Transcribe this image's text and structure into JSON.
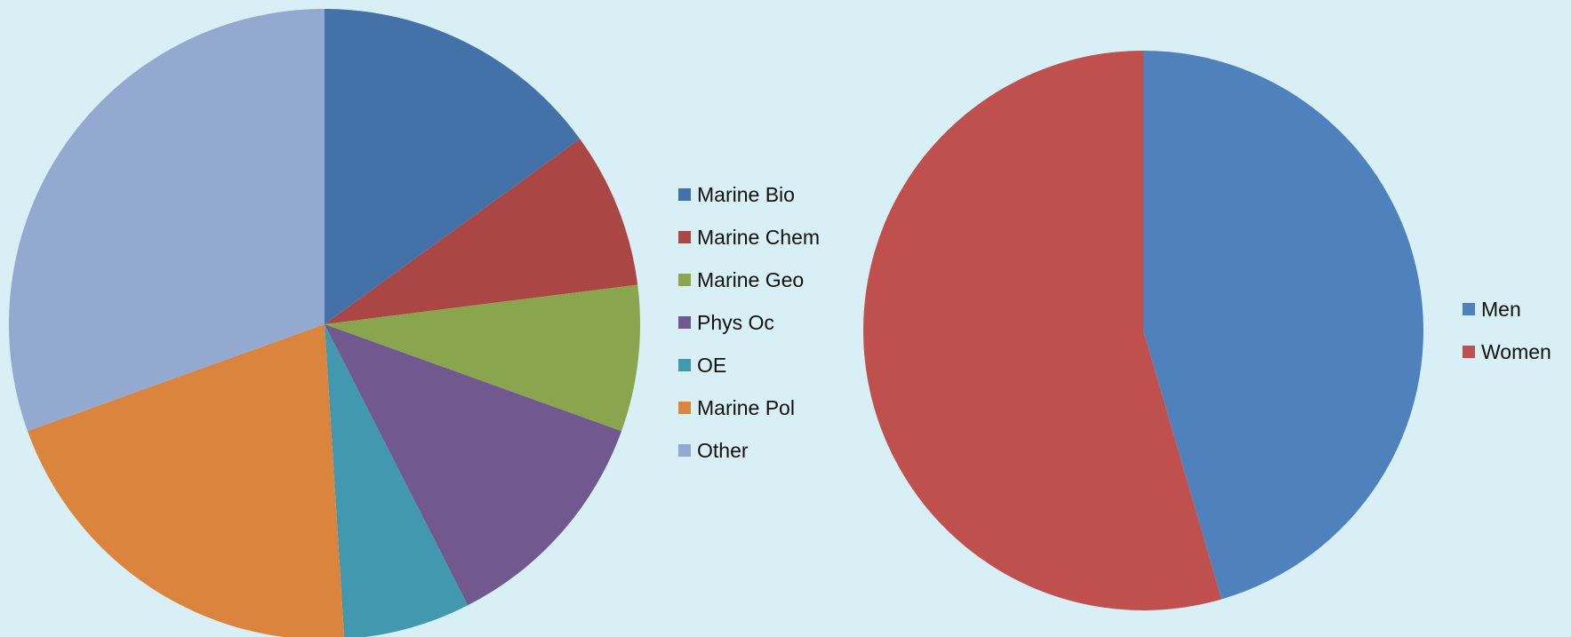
{
  "chart_data": [
    {
      "type": "pie",
      "legend_position": "right",
      "slices": [
        {
          "label": "Marine Bio",
          "value": 15,
          "color": "#4472a8"
        },
        {
          "label": "Marine Chem",
          "value": 8,
          "color": "#aa4643"
        },
        {
          "label": "Marine Geo",
          "value": 7.5,
          "color": "#89a54e"
        },
        {
          "label": "Phys Oc",
          "value": 12,
          "color": "#71588f"
        },
        {
          "label": "OE",
          "value": 6.5,
          "color": "#4198af"
        },
        {
          "label": "Marine Pol",
          "value": 20.5,
          "color": "#db843d"
        },
        {
          "label": "Other",
          "value": 30.5,
          "color": "#93a9cf"
        }
      ]
    },
    {
      "type": "pie",
      "legend_position": "right",
      "slices": [
        {
          "label": "Men",
          "value": 45.5,
          "color": "#4f81bd"
        },
        {
          "label": "Women",
          "value": 54.5,
          "color": "#c0504d"
        }
      ]
    }
  ]
}
